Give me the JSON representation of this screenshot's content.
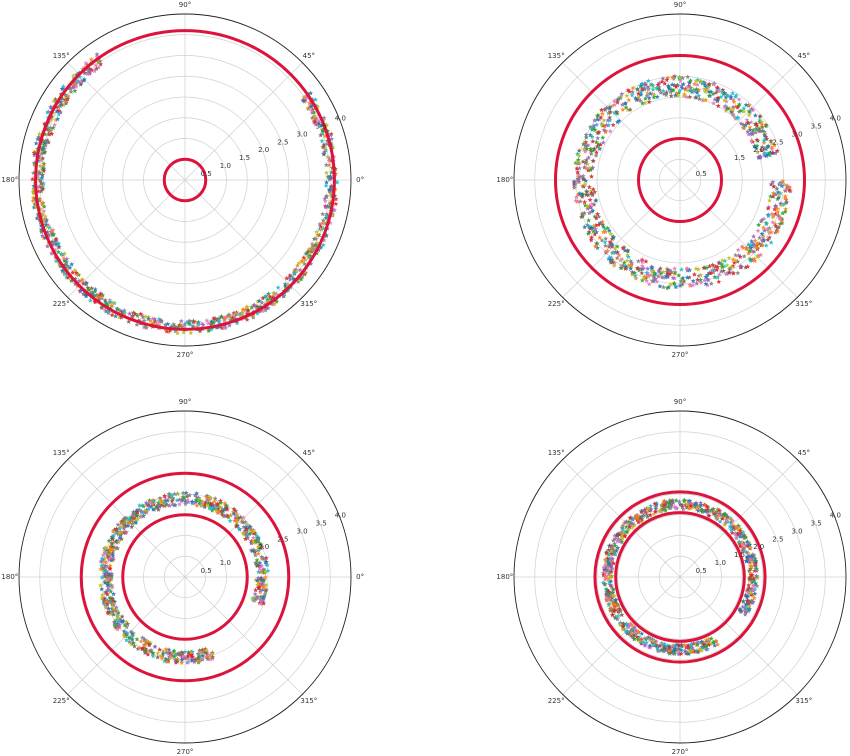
{
  "chart_data": [
    {
      "type": "scatter",
      "projection": "polar",
      "rlim": [
        0,
        4.0
      ],
      "r_ticks": [
        "0.5",
        "1.0",
        "1.5",
        "2.0",
        "2.5",
        "3.0",
        "3.5",
        "4.0"
      ],
      "theta_ticks": [
        "0°",
        "45°",
        "90°",
        "135°",
        "180°",
        "225°",
        "270°",
        "315°"
      ],
      "grid": true,
      "marker": "star",
      "boundary_circles": [
        {
          "r": 0.5,
          "color": "#dc143c"
        },
        {
          "r": 3.6,
          "color": "#dc143c"
        }
      ],
      "scatter_band": {
        "theta_start_deg": 125,
        "theta_end_deg": 395,
        "r_center": 3.55,
        "r_spread": 0.15,
        "points": 900
      }
    },
    {
      "type": "scatter",
      "projection": "polar",
      "rlim": [
        0,
        4.0
      ],
      "r_ticks": [
        "0.5",
        "1.5",
        "2.0",
        "2.5",
        "3.0",
        "3.5",
        "4.0"
      ],
      "theta_ticks": [
        "0°",
        "45°",
        "90°",
        "135°",
        "180°",
        "225°",
        "270°",
        "315°"
      ],
      "grid": true,
      "marker": "star",
      "boundary_circles": [
        {
          "r": 1.0,
          "color": "#dc143c"
        },
        {
          "r": 3.0,
          "color": "#dc143c"
        }
      ],
      "scatter_band": {
        "theta_start_deg": 15,
        "theta_end_deg": 360,
        "r_start": 2.2,
        "r_end": 2.45,
        "r_spread": 0.25,
        "points": 900
      }
    },
    {
      "type": "scatter",
      "projection": "polar",
      "rlim": [
        0,
        4.0
      ],
      "r_ticks": [
        "0.5",
        "1.0",
        "2.0",
        "2.5",
        "3.0",
        "3.5",
        "4.0"
      ],
      "theta_ticks": [
        "0°",
        "45°",
        "90°",
        "135°",
        "180°",
        "225°",
        "270°",
        "315°"
      ],
      "grid": true,
      "marker": "star",
      "boundary_circles": [
        {
          "r": 1.5,
          "color": "#dc143c"
        },
        {
          "r": 2.5,
          "color": "#dc143c"
        }
      ],
      "scatter_band": {
        "theta_start_deg": -20,
        "theta_end_deg": 290,
        "r_start": 1.85,
        "r_end": 1.95,
        "r_spread": 0.15,
        "points": 800
      }
    },
    {
      "type": "scatter",
      "projection": "polar",
      "rlim": [
        0,
        4.0
      ],
      "r_ticks": [
        "0.5",
        "1.0",
        "1.5",
        "2.0",
        "2.5",
        "3.0",
        "3.5",
        "4.0"
      ],
      "theta_ticks": [
        "0°",
        "45°",
        "90°",
        "135°",
        "180°",
        "225°",
        "270°",
        "315°"
      ],
      "grid": true,
      "marker": "star",
      "boundary_circles": [
        {
          "r": 1.55,
          "color": "#dc143c"
        },
        {
          "r": 2.05,
          "color": "#dc143c"
        }
      ],
      "scatter_band": {
        "theta_start_deg": -30,
        "theta_end_deg": 300,
        "r_center": 1.75,
        "r_spread": 0.12,
        "points": 800
      }
    }
  ],
  "marker_colors": [
    "#1f77b4",
    "#ff7f0e",
    "#2ca02c",
    "#d62728",
    "#9467bd",
    "#8c564b",
    "#e377c2",
    "#7f7f7f",
    "#bcbd22",
    "#17becf"
  ],
  "boundary_color": "#dc143c"
}
